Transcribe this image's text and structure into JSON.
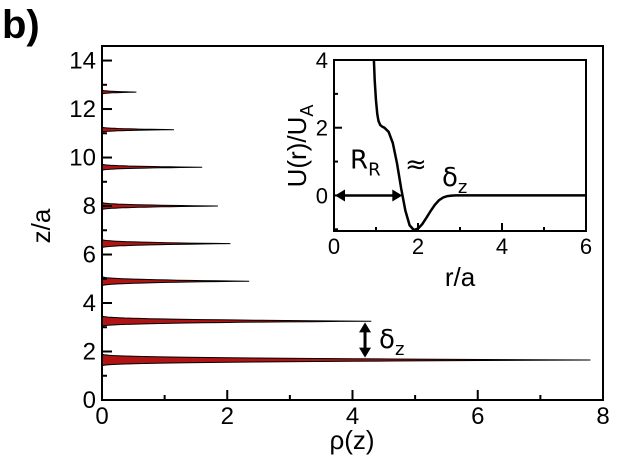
{
  "panel_label": "b)",
  "chart_data": [
    {
      "type": "area",
      "role": "main",
      "xlabel": "ρ(z)",
      "ylabel": "z/a",
      "xlim": [
        0,
        8
      ],
      "ylim": [
        0,
        14.6
      ],
      "xticks": [
        0,
        2,
        4,
        6,
        8
      ],
      "yticks": [
        0,
        2,
        4,
        6,
        8,
        10,
        12,
        14
      ],
      "xtick_labels": [
        "0",
        "2",
        "4",
        "6",
        "8"
      ],
      "ytick_labels": [
        "0",
        "2",
        "4",
        "6",
        "8",
        "10",
        "12",
        "14"
      ],
      "fill_color": "#b01414",
      "line_color": "#000000",
      "grid": false,
      "peaks": [
        {
          "z": 1.65,
          "rho_max": 7.8
        },
        {
          "z": 3.25,
          "rho_max": 4.3
        },
        {
          "z": 4.9,
          "rho_max": 2.35
        },
        {
          "z": 6.45,
          "rho_max": 2.05
        },
        {
          "z": 8.0,
          "rho_max": 1.85
        },
        {
          "z": 9.6,
          "rho_max": 1.6
        },
        {
          "z": 11.15,
          "rho_max": 1.15
        },
        {
          "z": 12.7,
          "rho_max": 0.55
        }
      ],
      "annotations": [
        {
          "text": "δ",
          "subscript": "z",
          "type": "double-arrow",
          "x": 4.2,
          "y_from": 1.75,
          "y_to": 3.2
        }
      ]
    },
    {
      "type": "line",
      "role": "inset",
      "xlabel": "r/a",
      "ylabel": "U(r)/U",
      "ylabel_subscript": "A",
      "xlim": [
        0,
        6
      ],
      "ylim": [
        -1.05,
        4
      ],
      "xticks": [
        0,
        2,
        4,
        6
      ],
      "yticks": [
        0,
        2,
        4
      ],
      "xtick_labels": [
        "0",
        "2",
        "4",
        "6"
      ],
      "ytick_labels": [
        "0",
        "2",
        "4"
      ],
      "line_color": "#000000",
      "grid": false,
      "series": [
        {
          "x": [
            0.95,
            0.97,
            1.0,
            1.03,
            1.06,
            1.1,
            1.15,
            1.2,
            1.3,
            1.4,
            1.5,
            1.6,
            1.7,
            1.8,
            1.9,
            2.0,
            2.1,
            2.2,
            2.3,
            2.4,
            2.5,
            2.6,
            2.7,
            2.8,
            2.9,
            3.0,
            3.2,
            3.5,
            4.0,
            5.0,
            6.0
          ],
          "y": [
            4.0,
            3.4,
            2.8,
            2.4,
            2.2,
            2.08,
            2.03,
            2.0,
            1.88,
            1.55,
            0.95,
            0.2,
            -0.45,
            -0.88,
            -1.02,
            -0.98,
            -0.85,
            -0.66,
            -0.46,
            -0.28,
            -0.14,
            -0.06,
            -0.02,
            -0.005,
            0.0,
            0.0,
            0.0,
            0.0,
            0.0,
            0.0,
            0.0
          ]
        }
      ],
      "annotations": [
        {
          "text": "R",
          "subscript": "R",
          "type": "double-arrow",
          "y": 0,
          "x_from": 0,
          "x_to": 1.65
        },
        {
          "text": "≈"
        },
        {
          "text": "δ",
          "subscript": "z"
        }
      ]
    }
  ]
}
